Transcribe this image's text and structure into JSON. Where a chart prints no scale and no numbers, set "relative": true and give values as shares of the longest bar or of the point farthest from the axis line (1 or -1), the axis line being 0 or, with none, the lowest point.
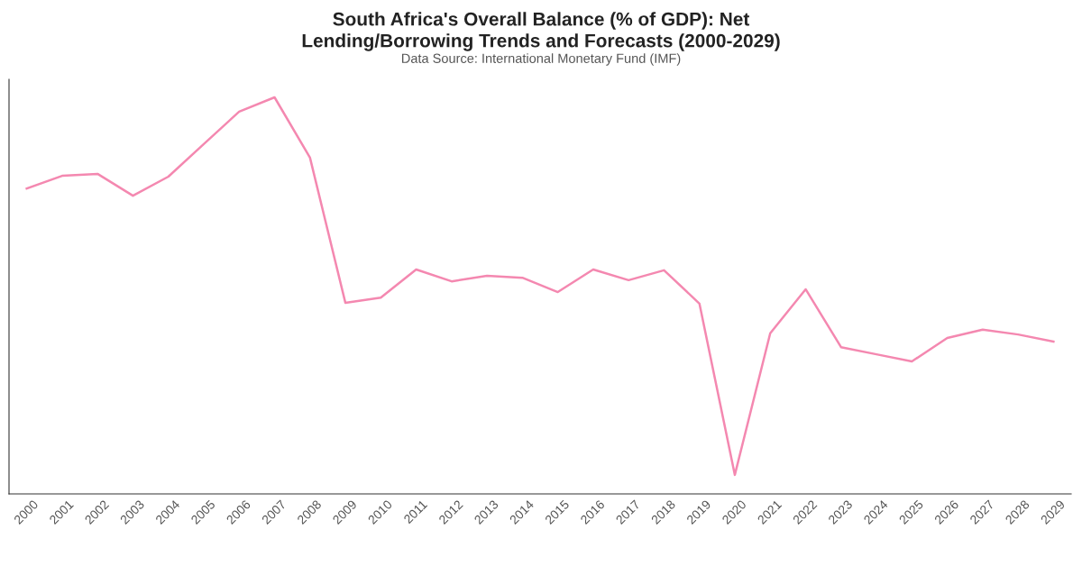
{
  "chart_data": {
    "type": "line",
    "title": "South Africa's Overall Balance (% of GDP): Net\nLending/Borrowing Trends and Forecasts (2000-2029)",
    "subtitle": "Data Source: International Monetary Fund (IMF)",
    "relative": true,
    "categories": [
      "2000",
      "2001",
      "2002",
      "2003",
      "2004",
      "2005",
      "2006",
      "2007",
      "2008",
      "2009",
      "2010",
      "2011",
      "2012",
      "2013",
      "2014",
      "2015",
      "2016",
      "2017",
      "2018",
      "2019",
      "2020",
      "2021",
      "2022",
      "2023",
      "2024",
      "2025",
      "2026",
      "2027",
      "2028",
      "2029"
    ],
    "series": [
      {
        "color": "#f488b0",
        "values": [
          0.77,
          0.802,
          0.807,
          0.752,
          0.8,
          0.882,
          0.964,
          1,
          0.848,
          0.482,
          0.495,
          0.566,
          0.536,
          0.55,
          0.545,
          0.509,
          0.566,
          0.539,
          0.564,
          0.48,
          0.048,
          0.405,
          0.516,
          0.37,
          0.352,
          0.334,
          0.393,
          0.414,
          0.402,
          0.384
        ]
      }
    ],
    "grid": false,
    "legend": false,
    "marker": "none",
    "line_style": "solid"
  }
}
